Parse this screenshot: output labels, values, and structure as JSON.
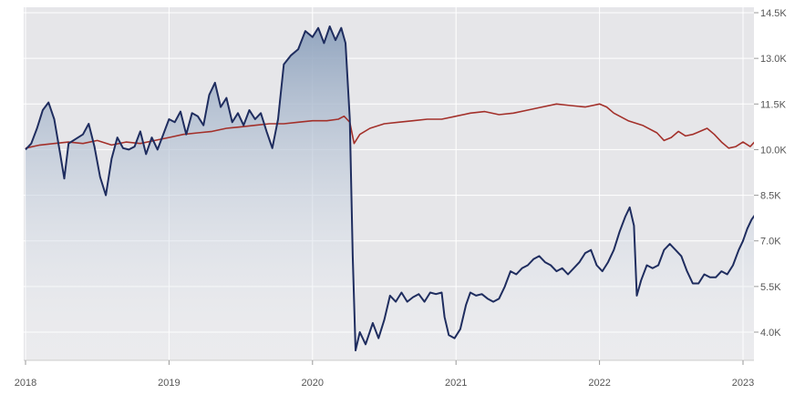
{
  "chart_data": {
    "type": "line",
    "x_ticks": [
      "2018",
      "2019",
      "2020",
      "2021",
      "2022",
      "2023"
    ],
    "y_ticks": [
      "4.0K",
      "5.5K",
      "7.0K",
      "8.5K",
      "10.0K",
      "11.5K",
      "13.0K",
      "14.5K"
    ],
    "y_tick_values": [
      4000,
      5500,
      7000,
      8500,
      10000,
      11500,
      13000,
      14500
    ],
    "ylim": [
      3000,
      14500
    ],
    "xlim": [
      2018.0,
      2023.05
    ],
    "grid": true,
    "colors": {
      "plot_background": "#e6e6e9",
      "grid": "#ffffff",
      "fund_line": "#1f2d5f",
      "fund_fill_top": "#8ea2bd",
      "fund_fill_bottom": "#ffffff",
      "benchmark_line": "#a3302a"
    },
    "series": [
      {
        "points": [
          [
            2018.0,
            10000
          ],
          [
            2018.04,
            10200
          ],
          [
            2018.08,
            10700
          ],
          [
            2018.12,
            11300
          ],
          [
            2018.16,
            11550
          ],
          [
            2018.2,
            11000
          ],
          [
            2018.24,
            9900
          ],
          [
            2018.27,
            9050
          ],
          [
            2018.3,
            10200
          ],
          [
            2018.35,
            10350
          ],
          [
            2018.4,
            10500
          ],
          [
            2018.44,
            10850
          ],
          [
            2018.48,
            10100
          ],
          [
            2018.52,
            9100
          ],
          [
            2018.56,
            8500
          ],
          [
            2018.6,
            9700
          ],
          [
            2018.64,
            10400
          ],
          [
            2018.68,
            10050
          ],
          [
            2018.72,
            10000
          ],
          [
            2018.76,
            10100
          ],
          [
            2018.8,
            10600
          ],
          [
            2018.84,
            9850
          ],
          [
            2018.88,
            10400
          ],
          [
            2018.92,
            10000
          ],
          [
            2018.96,
            10500
          ],
          [
            2019.0,
            11000
          ],
          [
            2019.04,
            10900
          ],
          [
            2019.08,
            11250
          ],
          [
            2019.12,
            10500
          ],
          [
            2019.16,
            11200
          ],
          [
            2019.2,
            11100
          ],
          [
            2019.24,
            10800
          ],
          [
            2019.28,
            11800
          ],
          [
            2019.32,
            12200
          ],
          [
            2019.36,
            11400
          ],
          [
            2019.4,
            11700
          ],
          [
            2019.44,
            10900
          ],
          [
            2019.48,
            11200
          ],
          [
            2019.52,
            10800
          ],
          [
            2019.56,
            11300
          ],
          [
            2019.6,
            11000
          ],
          [
            2019.64,
            11200
          ],
          [
            2019.68,
            10600
          ],
          [
            2019.72,
            10050
          ],
          [
            2019.76,
            11000
          ],
          [
            2019.8,
            12800
          ],
          [
            2019.85,
            13100
          ],
          [
            2019.9,
            13300
          ],
          [
            2019.95,
            13900
          ],
          [
            2020.0,
            13700
          ],
          [
            2020.04,
            14000
          ],
          [
            2020.08,
            13500
          ],
          [
            2020.12,
            14050
          ],
          [
            2020.16,
            13600
          ],
          [
            2020.2,
            14000
          ],
          [
            2020.23,
            13500
          ],
          [
            2020.26,
            11000
          ],
          [
            2020.28,
            6500
          ],
          [
            2020.3,
            3400
          ],
          [
            2020.33,
            4000
          ],
          [
            2020.37,
            3600
          ],
          [
            2020.42,
            4300
          ],
          [
            2020.46,
            3800
          ],
          [
            2020.5,
            4400
          ],
          [
            2020.54,
            5200
          ],
          [
            2020.58,
            5000
          ],
          [
            2020.62,
            5300
          ],
          [
            2020.66,
            5000
          ],
          [
            2020.7,
            5150
          ],
          [
            2020.74,
            5250
          ],
          [
            2020.78,
            5000
          ],
          [
            2020.82,
            5300
          ],
          [
            2020.86,
            5250
          ],
          [
            2020.9,
            5300
          ],
          [
            2020.92,
            4500
          ],
          [
            2020.95,
            3900
          ],
          [
            2020.99,
            3800
          ],
          [
            2021.03,
            4100
          ],
          [
            2021.07,
            4900
          ],
          [
            2021.1,
            5300
          ],
          [
            2021.14,
            5200
          ],
          [
            2021.18,
            5250
          ],
          [
            2021.22,
            5100
          ],
          [
            2021.26,
            5000
          ],
          [
            2021.3,
            5100
          ],
          [
            2021.34,
            5500
          ],
          [
            2021.38,
            6000
          ],
          [
            2021.42,
            5900
          ],
          [
            2021.46,
            6100
          ],
          [
            2021.5,
            6200
          ],
          [
            2021.54,
            6400
          ],
          [
            2021.58,
            6500
          ],
          [
            2021.62,
            6300
          ],
          [
            2021.66,
            6200
          ],
          [
            2021.7,
            6000
          ],
          [
            2021.74,
            6100
          ],
          [
            2021.78,
            5900
          ],
          [
            2021.82,
            6100
          ],
          [
            2021.86,
            6300
          ],
          [
            2021.9,
            6600
          ],
          [
            2021.94,
            6700
          ],
          [
            2021.98,
            6200
          ],
          [
            2022.02,
            6000
          ],
          [
            2022.06,
            6300
          ],
          [
            2022.1,
            6700
          ],
          [
            2022.14,
            7300
          ],
          [
            2022.18,
            7800
          ],
          [
            2022.21,
            8100
          ],
          [
            2022.24,
            7500
          ],
          [
            2022.26,
            5200
          ],
          [
            2022.29,
            5700
          ],
          [
            2022.33,
            6200
          ],
          [
            2022.37,
            6100
          ],
          [
            2022.41,
            6200
          ],
          [
            2022.45,
            6700
          ],
          [
            2022.49,
            6900
          ],
          [
            2022.53,
            6700
          ],
          [
            2022.57,
            6500
          ],
          [
            2022.61,
            6000
          ],
          [
            2022.65,
            5600
          ],
          [
            2022.69,
            5600
          ],
          [
            2022.73,
            5900
          ],
          [
            2022.77,
            5800
          ],
          [
            2022.81,
            5800
          ],
          [
            2022.85,
            6000
          ],
          [
            2022.89,
            5900
          ],
          [
            2022.93,
            6200
          ],
          [
            2022.97,
            6700
          ],
          [
            2023.0,
            7000
          ],
          [
            2023.03,
            7400
          ],
          [
            2023.06,
            7700
          ],
          [
            2023.09,
            7900
          ],
          [
            2023.12,
            8200
          ],
          [
            2023.15,
            8400
          ],
          [
            2023.18,
            8450
          ],
          [
            2023.21,
            8500
          ],
          [
            2023.24,
            8400
          ]
        ]
      },
      {
        "points": [
          [
            2018.0,
            10050
          ],
          [
            2018.1,
            10150
          ],
          [
            2018.2,
            10200
          ],
          [
            2018.3,
            10250
          ],
          [
            2018.4,
            10200
          ],
          [
            2018.5,
            10300
          ],
          [
            2018.6,
            10150
          ],
          [
            2018.7,
            10250
          ],
          [
            2018.8,
            10200
          ],
          [
            2018.9,
            10300
          ],
          [
            2019.0,
            10400
          ],
          [
            2019.1,
            10500
          ],
          [
            2019.2,
            10550
          ],
          [
            2019.3,
            10600
          ],
          [
            2019.4,
            10700
          ],
          [
            2019.5,
            10750
          ],
          [
            2019.6,
            10800
          ],
          [
            2019.7,
            10850
          ],
          [
            2019.8,
            10850
          ],
          [
            2019.9,
            10900
          ],
          [
            2020.0,
            10950
          ],
          [
            2020.1,
            10950
          ],
          [
            2020.18,
            11000
          ],
          [
            2020.22,
            11100
          ],
          [
            2020.26,
            10900
          ],
          [
            2020.29,
            10200
          ],
          [
            2020.33,
            10500
          ],
          [
            2020.4,
            10700
          ],
          [
            2020.5,
            10850
          ],
          [
            2020.6,
            10900
          ],
          [
            2020.7,
            10950
          ],
          [
            2020.8,
            11000
          ],
          [
            2020.9,
            11000
          ],
          [
            2021.0,
            11100
          ],
          [
            2021.1,
            11200
          ],
          [
            2021.2,
            11250
          ],
          [
            2021.3,
            11150
          ],
          [
            2021.4,
            11200
          ],
          [
            2021.5,
            11300
          ],
          [
            2021.6,
            11400
          ],
          [
            2021.7,
            11500
          ],
          [
            2021.8,
            11450
          ],
          [
            2021.9,
            11400
          ],
          [
            2022.0,
            11500
          ],
          [
            2022.05,
            11400
          ],
          [
            2022.1,
            11200
          ],
          [
            2022.2,
            10950
          ],
          [
            2022.3,
            10800
          ],
          [
            2022.4,
            10550
          ],
          [
            2022.45,
            10300
          ],
          [
            2022.5,
            10400
          ],
          [
            2022.55,
            10600
          ],
          [
            2022.6,
            10450
          ],
          [
            2022.65,
            10500
          ],
          [
            2022.7,
            10600
          ],
          [
            2022.75,
            10700
          ],
          [
            2022.8,
            10500
          ],
          [
            2022.85,
            10250
          ],
          [
            2022.9,
            10050
          ],
          [
            2022.95,
            10100
          ],
          [
            2023.0,
            10250
          ],
          [
            2023.05,
            10100
          ],
          [
            2023.1,
            10350
          ],
          [
            2023.15,
            10300
          ],
          [
            2023.2,
            10250
          ],
          [
            2023.24,
            10150
          ]
        ]
      }
    ]
  }
}
